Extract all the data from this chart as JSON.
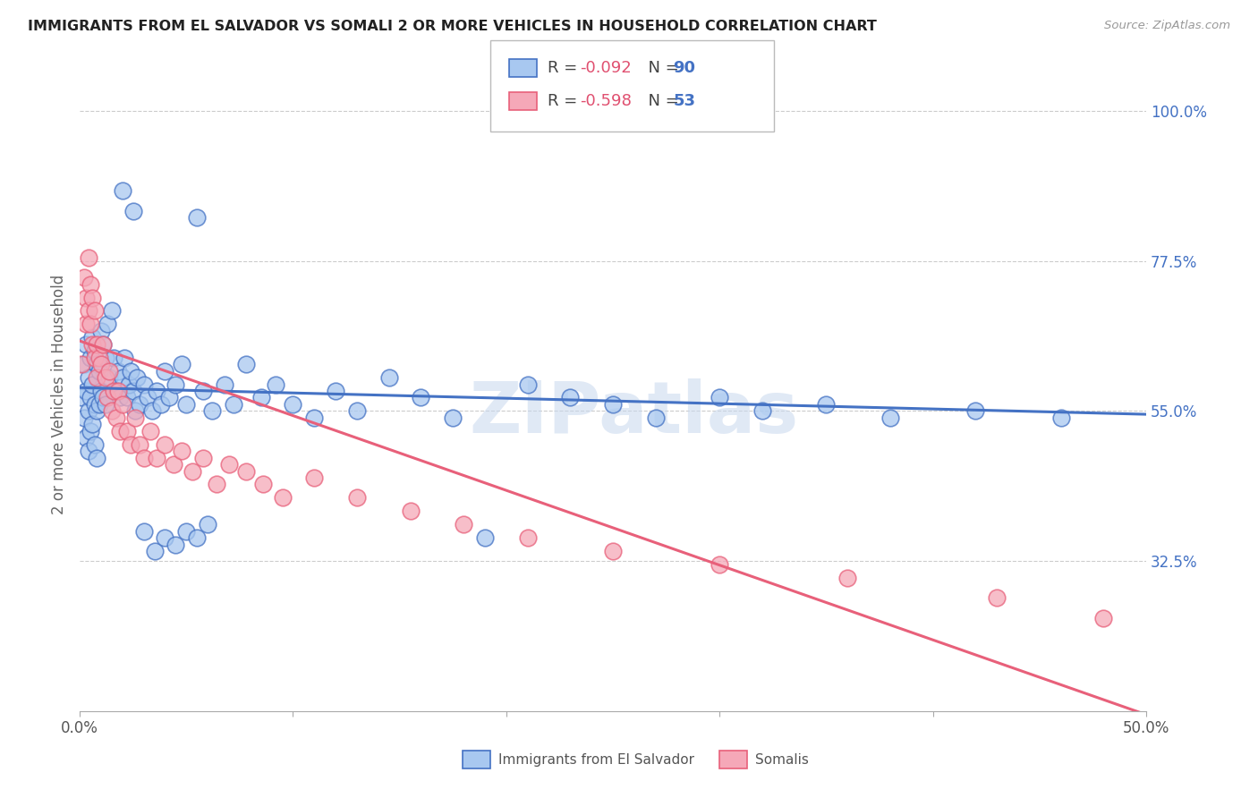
{
  "title": "IMMIGRANTS FROM EL SALVADOR VS SOMALI 2 OR MORE VEHICLES IN HOUSEHOLD CORRELATION CHART",
  "source": "Source: ZipAtlas.com",
  "ylabel": "2 or more Vehicles in Household",
  "x_min": 0.0,
  "x_max": 0.5,
  "y_min": 0.1,
  "y_max": 1.05,
  "x_ticks": [
    0.0,
    0.1,
    0.2,
    0.3,
    0.4,
    0.5
  ],
  "x_tick_labels": [
    "0.0%",
    "",
    "",
    "",
    "",
    "50.0%"
  ],
  "y_ticks": [
    0.325,
    0.55,
    0.775,
    1.0
  ],
  "y_tick_labels_right": [
    "32.5%",
    "55.0%",
    "77.5%",
    "100.0%"
  ],
  "grid_color": "#cccccc",
  "background_color": "#ffffff",
  "el_salvador_color": "#a8c8f0",
  "somali_color": "#f5a8b8",
  "el_salvador_line_color": "#4472c4",
  "somali_line_color": "#e8607a",
  "watermark": "ZIPatlas",
  "el_salvador_x": [
    0.001,
    0.002,
    0.002,
    0.003,
    0.003,
    0.003,
    0.004,
    0.004,
    0.004,
    0.005,
    0.005,
    0.005,
    0.006,
    0.006,
    0.006,
    0.007,
    0.007,
    0.007,
    0.008,
    0.008,
    0.008,
    0.009,
    0.009,
    0.01,
    0.01,
    0.011,
    0.011,
    0.012,
    0.012,
    0.013,
    0.014,
    0.015,
    0.016,
    0.017,
    0.018,
    0.019,
    0.02,
    0.021,
    0.022,
    0.023,
    0.024,
    0.025,
    0.026,
    0.027,
    0.028,
    0.03,
    0.032,
    0.034,
    0.036,
    0.038,
    0.04,
    0.042,
    0.045,
    0.048,
    0.05,
    0.055,
    0.058,
    0.062,
    0.068,
    0.072,
    0.078,
    0.085,
    0.092,
    0.1,
    0.11,
    0.12,
    0.13,
    0.145,
    0.16,
    0.175,
    0.19,
    0.21,
    0.23,
    0.25,
    0.27,
    0.3,
    0.32,
    0.35,
    0.38,
    0.42,
    0.46,
    0.02,
    0.025,
    0.03,
    0.035,
    0.04,
    0.045,
    0.05,
    0.055,
    0.06
  ],
  "el_salvador_y": [
    0.57,
    0.62,
    0.54,
    0.65,
    0.58,
    0.51,
    0.6,
    0.55,
    0.49,
    0.63,
    0.57,
    0.52,
    0.66,
    0.59,
    0.53,
    0.64,
    0.56,
    0.5,
    0.62,
    0.55,
    0.48,
    0.61,
    0.56,
    0.67,
    0.58,
    0.65,
    0.57,
    0.63,
    0.56,
    0.68,
    0.6,
    0.7,
    0.63,
    0.58,
    0.61,
    0.57,
    0.6,
    0.63,
    0.57,
    0.59,
    0.61,
    0.58,
    0.55,
    0.6,
    0.56,
    0.59,
    0.57,
    0.55,
    0.58,
    0.56,
    0.61,
    0.57,
    0.59,
    0.62,
    0.56,
    0.84,
    0.58,
    0.55,
    0.59,
    0.56,
    0.62,
    0.57,
    0.59,
    0.56,
    0.54,
    0.58,
    0.55,
    0.6,
    0.57,
    0.54,
    0.36,
    0.59,
    0.57,
    0.56,
    0.54,
    0.57,
    0.55,
    0.56,
    0.54,
    0.55,
    0.54,
    0.88,
    0.85,
    0.37,
    0.34,
    0.36,
    0.35,
    0.37,
    0.36,
    0.38
  ],
  "somali_x": [
    0.001,
    0.002,
    0.003,
    0.003,
    0.004,
    0.004,
    0.005,
    0.005,
    0.006,
    0.006,
    0.007,
    0.007,
    0.008,
    0.008,
    0.009,
    0.01,
    0.011,
    0.012,
    0.013,
    0.014,
    0.015,
    0.016,
    0.017,
    0.018,
    0.019,
    0.02,
    0.022,
    0.024,
    0.026,
    0.028,
    0.03,
    0.033,
    0.036,
    0.04,
    0.044,
    0.048,
    0.053,
    0.058,
    0.064,
    0.07,
    0.078,
    0.086,
    0.095,
    0.11,
    0.13,
    0.155,
    0.18,
    0.21,
    0.25,
    0.3,
    0.36,
    0.43,
    0.48
  ],
  "somali_y": [
    0.62,
    0.75,
    0.72,
    0.68,
    0.78,
    0.7,
    0.74,
    0.68,
    0.72,
    0.65,
    0.7,
    0.63,
    0.65,
    0.6,
    0.63,
    0.62,
    0.65,
    0.6,
    0.57,
    0.61,
    0.55,
    0.58,
    0.54,
    0.58,
    0.52,
    0.56,
    0.52,
    0.5,
    0.54,
    0.5,
    0.48,
    0.52,
    0.48,
    0.5,
    0.47,
    0.49,
    0.46,
    0.48,
    0.44,
    0.47,
    0.46,
    0.44,
    0.42,
    0.45,
    0.42,
    0.4,
    0.38,
    0.36,
    0.34,
    0.32,
    0.3,
    0.27,
    0.24
  ]
}
